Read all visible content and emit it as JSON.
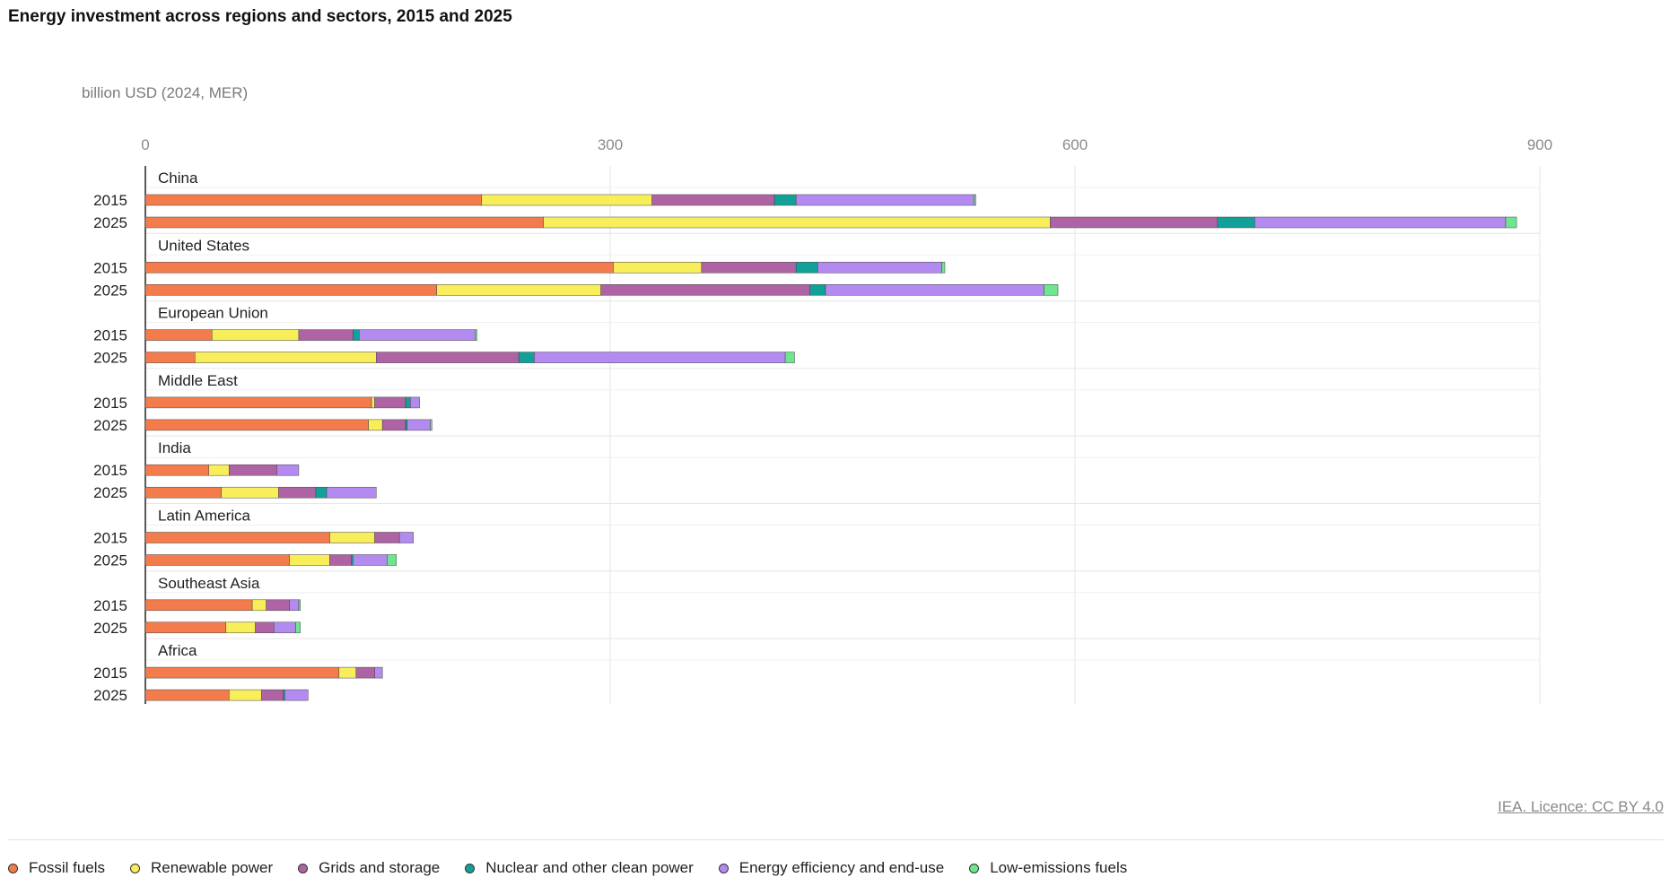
{
  "chart_data": {
    "type": "bar",
    "orientation": "horizontal",
    "stacked": true,
    "title": "Energy investment across regions and sectors, 2015 and 2025",
    "unit_label": "billion USD (2024, MER)",
    "xlim": [
      0,
      900
    ],
    "xticks": [
      0,
      300,
      600,
      900
    ],
    "grid": true,
    "legend_placement": "bottom",
    "credit": "IEA. Licence: CC BY 4.0",
    "series": [
      {
        "name": "Fossil fuels",
        "color": "#f47c4c"
      },
      {
        "name": "Renewable power",
        "color": "#f8ee5a"
      },
      {
        "name": "Grids and storage",
        "color": "#ae64a4"
      },
      {
        "name": "Nuclear and other clean power",
        "color": "#11a199"
      },
      {
        "name": "Energy efficiency and end-use",
        "color": "#b38bf0"
      },
      {
        "name": "Low-emissions fuels",
        "color": "#6ee68e"
      }
    ],
    "groups": [
      {
        "region": "China",
        "rows": [
          {
            "year": "2015",
            "values": [
              217,
              110,
              79,
              14,
              115,
              1
            ]
          },
          {
            "year": "2025",
            "values": [
              257,
              327,
              108,
              24,
              162,
              7
            ]
          }
        ]
      },
      {
        "region": "United States",
        "rows": [
          {
            "year": "2015",
            "values": [
              302,
              57,
              61,
              14,
              80,
              2
            ]
          },
          {
            "year": "2025",
            "values": [
              188,
              106,
              135,
              10,
              141,
              9
            ]
          }
        ]
      },
      {
        "region": "European Union",
        "rows": [
          {
            "year": "2015",
            "values": [
              43,
              56,
              35,
              4,
              75,
              1
            ]
          },
          {
            "year": "2025",
            "values": [
              32,
              117,
              92,
              10,
              162,
              6
            ]
          }
        ]
      },
      {
        "region": "Middle East",
        "rows": [
          {
            "year": "2015",
            "values": [
              146,
              2,
              20,
              3,
              6,
              0
            ]
          },
          {
            "year": "2025",
            "values": [
              144,
              9,
              15,
              1,
              15,
              1
            ]
          }
        ]
      },
      {
        "region": "India",
        "rows": [
          {
            "year": "2015",
            "values": [
              41,
              13,
              31,
              0,
              14,
              0
            ]
          },
          {
            "year": "2025",
            "values": [
              49,
              37,
              24,
              7,
              32,
              0
            ]
          }
        ]
      },
      {
        "region": "Latin America",
        "rows": [
          {
            "year": "2015",
            "values": [
              119,
              29,
              16,
              0,
              9,
              0
            ]
          },
          {
            "year": "2025",
            "values": [
              93,
              26,
              14,
              1,
              22,
              6
            ]
          }
        ]
      },
      {
        "region": "Southeast Asia",
        "rows": [
          {
            "year": "2015",
            "values": [
              69,
              9,
              15,
              0,
              6,
              1
            ]
          },
          {
            "year": "2025",
            "values": [
              52,
              19,
              12,
              0,
              14,
              3
            ]
          }
        ]
      },
      {
        "region": "Africa",
        "rows": [
          {
            "year": "2015",
            "values": [
              125,
              11,
              12,
              0,
              5,
              0
            ]
          },
          {
            "year": "2025",
            "values": [
              54,
              21,
              14,
              1,
              15,
              0
            ]
          }
        ]
      }
    ]
  }
}
